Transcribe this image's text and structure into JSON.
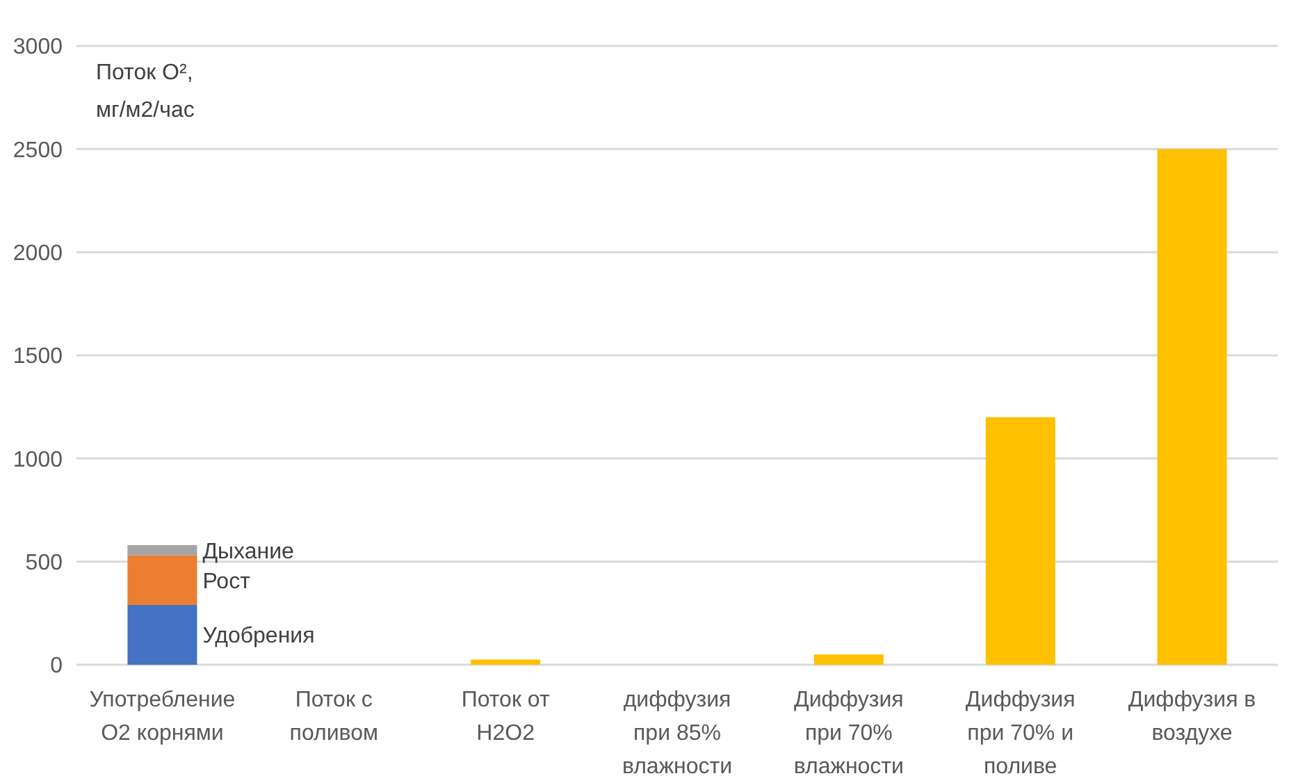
{
  "chart_data": {
    "type": "bar",
    "stacked": true,
    "ylabel": "Поток O², мг/м2/час",
    "categories": [
      "Употребление O2 корнями",
      "Поток с поливом",
      "Поток от H2O2",
      "диффузия при 85% влажности",
      "Диффузия при 70% влажности",
      "Диффузия при 70% и поливе",
      "Диффузия в воздухе"
    ],
    "series": [
      {
        "name": "Удобрения",
        "color": "#4472c4",
        "values": [
          290,
          null,
          null,
          null,
          null,
          null,
          null
        ]
      },
      {
        "name": "Рост",
        "color": "#ed7d31",
        "values": [
          240,
          null,
          null,
          null,
          null,
          null,
          null
        ]
      },
      {
        "name": "Дыхание",
        "color": "#a5a5a5",
        "values": [
          50,
          null,
          null,
          null,
          null,
          null,
          null
        ]
      },
      {
        "color": "#ffc000",
        "values": [
          null,
          0,
          25,
          0,
          50,
          1200,
          2500
        ]
      }
    ],
    "ylim": [
      0,
      3000
    ],
    "yticks": [
      0,
      500,
      1000,
      1500,
      2000,
      2500,
      3000
    ],
    "grid": "y"
  }
}
